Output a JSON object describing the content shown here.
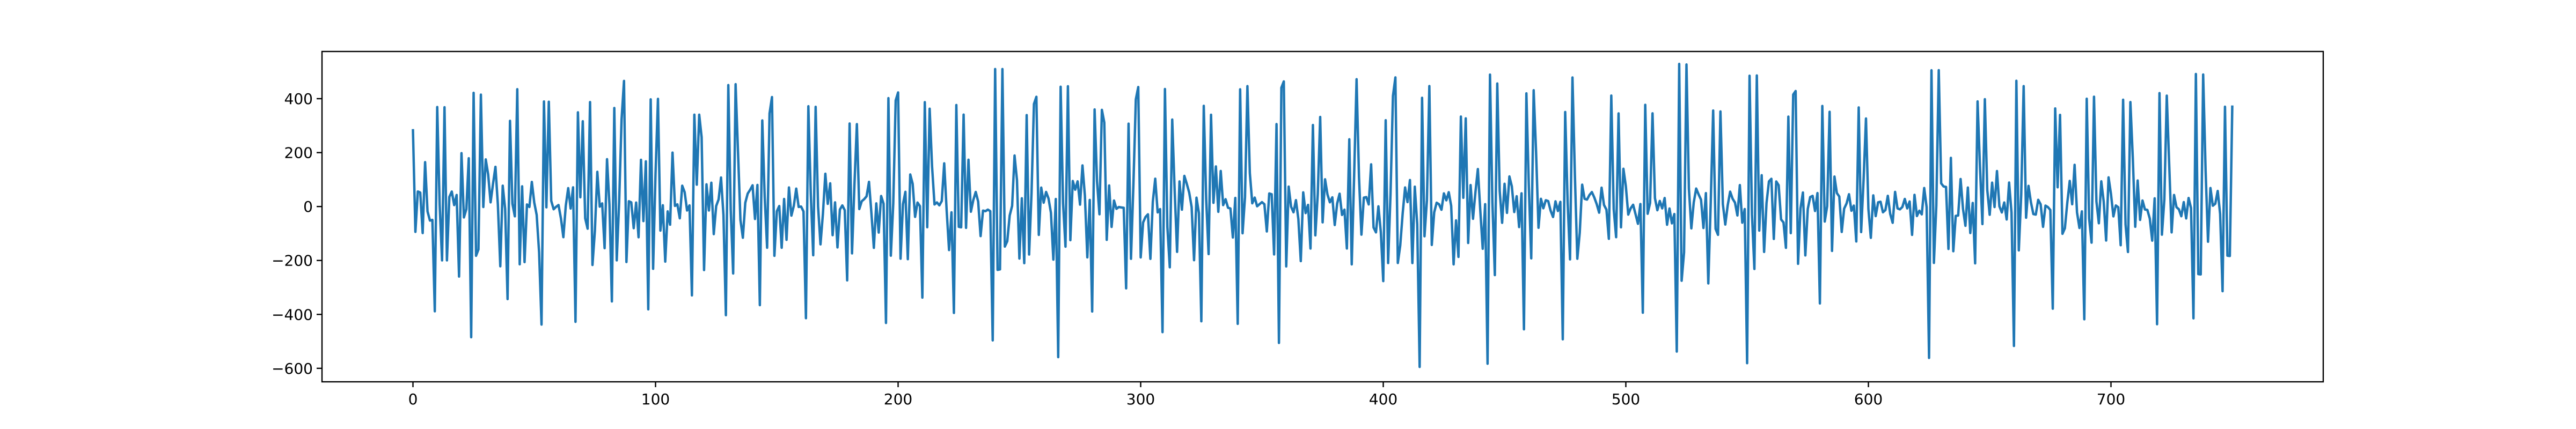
{
  "chart_data": {
    "type": "line",
    "title": "",
    "xlabel": "",
    "ylabel": "",
    "xlim": [
      -37.5,
      787.5
    ],
    "ylim": [
      -650,
      575
    ],
    "xticks": [
      0,
      100,
      200,
      300,
      400,
      500,
      600,
      700
    ],
    "xtick_labels": [
      "0",
      "100",
      "200",
      "300",
      "400",
      "500",
      "600",
      "700"
    ],
    "yticks": [
      400,
      200,
      0,
      -200,
      -400,
      -600
    ],
    "ytick_labels": [
      "400",
      "200",
      "0",
      "−200",
      "−400",
      "−600"
    ],
    "grid": false,
    "legend": "none",
    "series": [
      {
        "color": "#1f77b4",
        "x_start": 0,
        "x_step": 1,
        "values": [
          282.7,
          -93.9,
          55.8,
          51.9,
          -98.3,
          164.5,
          -18.0,
          -52.0,
          -49.5,
          -388.5,
          369.0,
          7.5,
          -199.7,
          368.2,
          -199.6,
          35.6,
          55.6,
          5.2,
          42.8,
          -259.7,
          197.9,
          -40.4,
          -9.7,
          179.1,
          -484.7,
          421.6,
          -182.7,
          -158.9,
          414.9,
          -1.6,
          174.8,
          118.8,
          15.5,
          84.2,
          147.3,
          7.5,
          -221.6,
          77.4,
          -8.7,
          -343.2,
          317.7,
          10.2,
          -36.3,
          435.0,
          -214.2,
          74.8,
          -206.1,
          7.7,
          -1.6,
          91.3,
          14.9,
          -31.2,
          -169.7,
          -437.6,
          389.5,
          -3.0,
          388.6,
          21.2,
          -10.1,
          -1.0,
          5.6,
          -43.9,
          -113.6,
          3.0,
          68.3,
          -7.4,
          71.1,
          -427.6,
          349.3,
          34.4,
          316.2,
          -43.6,
          -82.2,
          387.4,
          -216.7,
          -89.8,
          128.7,
          -0.5,
          11.6,
          -154.4,
          175.6,
          7.5,
          -351.9,
          365.5,
          -199.7,
          16.4,
          323.7,
          465.8,
          -205.7,
          19.6,
          15.3,
          -80.4,
          14.7,
          -114.0,
          173.3,
          -54.0,
          167.5,
          -381.3,
          397.6,
          -231.0,
          123.2,
          399.3,
          -89.3,
          4.7,
          -204.3,
          -17.9,
          -67.4,
          200.0,
          2.4,
          8.1,
          -43.7,
          77.3,
          53.5,
          -14.7,
          4.2,
          -329.5,
          340.6,
          81.0,
          340.5,
          257.0,
          -235.5,
          82.3,
          -14.7,
          88.3,
          -102.3,
          1.8,
          26.4,
          107.6,
          -31.7,
          -402.9,
          450.5,
          -12.9,
          -248.2,
          453.6,
          201.9,
          -49.5,
          -115.8,
          14.0,
          48.1,
          62.1,
          78.8,
          -46.2,
          80.0,
          -365.6,
          319.1,
          36.0,
          -152.8,
          345.2,
          405.9,
          -182.7,
          -17.8,
          1.9,
          -152.9,
          28.0,
          -123.6,
          70.7,
          -33.7,
          2.3,
          66.5,
          -1.6,
          0.1,
          -18.3,
          -414.0,
          371.8,
          46.3,
          -180.6,
          369.7,
          0.4,
          -140.4,
          -27.3,
          121.6,
          10.0,
          86.0,
          -106.2,
          15.4,
          -151.7,
          -11.1,
          4.1,
          -13.6,
          -273.8,
          307.8,
          -173.7,
          81.5,
          305.5,
          -9.3,
          19.5,
          27.2,
          38.0,
          91.5,
          -25.3,
          -153.3,
          11.7,
          -96.6,
          39.0,
          10.7,
          -431.7,
          402.0,
          -182.3,
          11.7,
          393.4,
          423.1,
          -193.3,
          8.7,
          54.6,
          -195.2,
          118.9,
          84.1,
          -38.3,
          14.7,
          1.6,
          -337.7,
          387.0,
          -76.8,
          362.6,
          148.5,
          7.7,
          15.2,
          4.4,
          20.5,
          160.2,
          -12.3,
          -161.5,
          -21.6,
          -394.5,
          376.5,
          -75.2,
          -77.0,
          340.9,
          -79.1,
          173.5,
          -19.2,
          24.1,
          54.1,
          18.6,
          -109.6,
          -15.1,
          -17.2,
          -11.5,
          -17.1,
          -496.5,
          510.0,
          -235.0,
          -233.1,
          510.0,
          -148.6,
          -128.7,
          -33.1,
          2.3,
          189.1,
          98.1,
          -192.9,
          30.6,
          -209.9,
          339.1,
          -178.0,
          49.9,
          380.2,
          407.0,
          -105.1,
          70.1,
          14.2,
          54.2,
          30.0,
          -23.0,
          -196.9,
          27.9,
          -558.5,
          444.2,
          11.4,
          -148.8,
          446.0,
          -124.8,
          94.7,
          62.4,
          93.5,
          6.9,
          152.5,
          40.2,
          -188.5,
          24.4,
          -389.3,
          359.9,
          93.7,
          -28.7,
          358.6,
          311.5,
          -123.6,
          78.0,
          -75.6,
          22.1,
          -8.5,
          -1.8,
          -3.4,
          -4.6,
          -303.4,
          307.2,
          -193.9,
          81.2,
          397.4,
          443.2,
          -188.7,
          -59.0,
          -38.5,
          -28.9,
          -194.0,
          18.0,
          103.2,
          -21.8,
          -9.5,
          -465.8,
          435.8,
          -76.1,
          -225.4,
          322.4,
          60.8,
          -168.0,
          93.1,
          -11.7,
          113.6,
          84.4,
          51.8,
          -1.6,
          -198.9,
          32.9,
          -24.3,
          -425.6,
          373.4,
          27.2,
          -176.3,
          340.4,
          13.7,
          148.6,
          -19.5,
          131.8,
          5.2,
          27.2,
          -4.4,
          -7.2,
          -114.9,
          31.8,
          -435.1,
          434.7,
          -99.1,
          34.4,
          446.4,
          123.7,
          12.0,
          33.3,
          1.0,
          8.7,
          16.3,
          8.5,
          -92.5,
          48.4,
          45.4,
          -177.7,
          305.7,
          -505.9,
          440.7,
          463.9,
          -222.1,
          73.9,
          -0.5,
          -21.3,
          23.7,
          -46.4,
          -202.4,
          52.6,
          -24.4,
          6.1,
          -155.8,
          302.4,
          -106.9,
          45.9,
          332.2,
          -58.7,
          100.9,
          44.8,
          15.6,
          34.2,
          -68.5,
          11.4,
          47.6,
          -31.2,
          -11.5,
          -155.6,
          249.3,
          -214.4,
          117.0,
          472.0,
          109.5,
          -104.2,
          33.0,
          35.0,
          7.8,
          156.5,
          -77.7,
          -95.8,
          0.8,
          -95.0,
          -276.6,
          319.9,
          -209.6,
          47.7,
          410.2,
          478.8,
          -209.3,
          -144.6,
          -25.8,
          70.6,
          16.5,
          98.2,
          -209.6,
          73.5,
          -65.5,
          -594.8,
          403.2,
          -110.4,
          22.7,
          446.7,
          -142.4,
          -21.7,
          14.1,
          8.4,
          -12.0,
          48.8,
          22.9,
          53.2,
          2.6,
          -214.5,
          -51.3,
          -186.8,
          333.7,
          32.4,
          326.8,
          -135.1,
          79.6,
          -45.5,
          53.4,
          139.1,
          -14.6,
          -156.6,
          8.8,
          -583.0,
          489.3,
          14.1,
          -254.3,
          456.2,
          58.3,
          -60.4,
          84.4,
          -23.5,
          111.6,
          75.1,
          -20.4,
          38.2,
          -76.2,
          49.1,
          -455.4,
          419.7,
          79.3,
          -192.2,
          431.2,
          201.8,
          -78.8,
          28.7,
          -6.5,
          23.3,
          20.1,
          -15.6,
          -38.8,
          19.3,
          -16.5,
          17.3,
          -492.5,
          350.5,
          18.1,
          -196.1,
          478.5,
          115.6,
          -193.7,
          -97.1,
          81.0,
          28.4,
          25.8,
          42.8,
          53.7,
          33.6,
          8.7,
          -22.8,
          69.8,
          5.9,
          -11.5,
          -119.7,
          411.4,
          -9.5,
          -113.7,
          345.2,
          -77.0,
          140.0,
          75.7,
          -30.0,
          -6.5,
          6.5,
          -28.1,
          -64.0,
          9.2,
          -393.6,
          377.2,
          -26.7,
          13.3,
          345.6,
          31.1,
          -13.8,
          20.7,
          -7.0,
          31.5,
          -67.5,
          -7.3,
          -62.5,
          -27.8,
          -537.9,
          528.9,
          -275.2,
          -170.0,
          526.7,
          66.4,
          -81.0,
          15.2,
          66.8,
          45.0,
          25.4,
          -79.6,
          49.7,
          -285.1,
          14.3,
          356.1,
          -82.7,
          -105.0,
          352.5,
          8.7,
          -66.8,
          4.6,
          55.2,
          29.3,
          14.6,
          -33.1,
          79.5,
          -59.9,
          -9.3,
          -581.0,
          485.1,
          -29.2,
          -231.5,
          486.0,
          -89.3,
          116.0,
          -168.3,
          13.3,
          93.3,
          102.9,
          -120.1,
          93.0,
          79.2,
          -47.8,
          -59.2,
          -153.2,
          333.4,
          -98.6,
          415.2,
          428.3,
          -212.4,
          -7.4,
          52.0,
          -181.3,
          -9.1,
          35.0,
          39.5,
          -16.4,
          49.9,
          -359.3,
          372.9,
          -55.7,
          1.5,
          351.2,
          -164.6,
          111.2,
          49.8,
          37.1,
          -94.3,
          -7.8,
          11.4,
          45.7,
          -15.6,
          3.5,
          -129.6,
          367.4,
          -94.6,
          96.3,
          326.4,
          -9.1,
          -116.0,
          41.4,
          -35.6,
          15.6,
          17.9,
          -21.3,
          -13.3,
          39.7,
          -27.6,
          -60.3,
          54.3,
          -6.9,
          -10.6,
          -1.6,
          28.2,
          -7.0,
          18.8,
          -105.1,
          43.4,
          -35.2,
          -15.5,
          -29.1,
          68.6,
          -2.1,
          -561.4,
          505.3,
          -209.1,
          4.8,
          505.6,
          86.0,
          74.4,
          72.6,
          -157.3,
          180.6,
          -165.8,
          -34.6,
          -33.2,
          102.0,
          -8.6,
          -71.4,
          70.5,
          -98.2,
          13.3,
          -210.7,
          389.9,
          147.2,
          -65.0,
          398.1,
          61.7,
          -30.5,
          88.5,
          -2.0,
          131.6,
          1.0,
          -21.9,
          15.0,
          -48.0,
          89.0,
          -22.8,
          -517.1,
          466.3,
          -162.6,
          44.9,
          446.4,
          -41.6,
          76.5,
          15.5,
          -27.9,
          -29.9,
          24.9,
          8.3,
          -75.2,
          3.4,
          -2.0,
          -12.7,
          -378.7,
          363.7,
          71.4,
          339.8,
          -101.1,
          -80.4,
          14.9,
          95.1,
          8.6,
          154.7,
          -21.7,
          -79.5,
          -17.9,
          -418.1,
          399.8,
          -44.7,
          -133.9,
          407.3,
          18.9,
          -62.0,
          93.4,
          18.4,
          -126.1,
          108.1,
          46.5,
          -36.6,
          3.9,
          -2.5,
          -143.5,
          396.1,
          -66.2,
          -168.6,
          387.3,
          179.8,
          -75.1,
          96.4,
          -49.6,
          22.3,
          -10.9,
          -12.6,
          -44.7,
          -126.5,
          30.3,
          -436.5,
          420.6,
          -104.4,
          26.0,
          411.1,
          156.7,
          -95.8,
          42.9,
          -2.3,
          -10.3,
          -36.1,
          16.4,
          -44.1,
          31.7,
          -5.6,
          -414.5,
          491.6,
          -250.5,
          -251.8,
          489.6,
          136.2,
          -130.5,
          68.6,
          3.0,
          10.5,
          57.8,
          -27.3,
          -314.0,
          370.1,
          -182.2,
          -183.4,
          370.3
        ]
      }
    ]
  }
}
